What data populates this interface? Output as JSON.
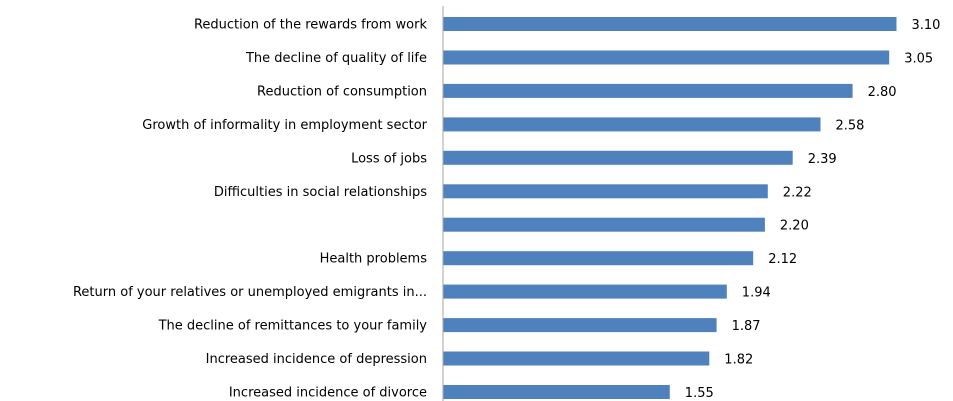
{
  "chart_data": {
    "type": "bar",
    "orientation": "horizontal",
    "categories": [
      "Reduction of the rewards from work",
      "The decline of quality of life",
      "Reduction of consumption",
      "Growth of informality in employment sector",
      "Loss of jobs",
      "Difficulties in social relationships",
      "",
      "Health problems",
      "Return of your relatives or unemployed emigrants in...",
      "The decline of remittances to your family",
      "Increased incidence of depression",
      "Increased incidence of divorce"
    ],
    "values": [
      3.1,
      3.05,
      2.8,
      2.58,
      2.39,
      2.22,
      2.2,
      2.12,
      1.94,
      1.87,
      1.82,
      1.55
    ],
    "value_labels": [
      "3.10",
      "3.05",
      "2.80",
      "2.58",
      "2.39",
      "2.22",
      "2.20",
      "2.12",
      "1.94",
      "1.87",
      "1.82",
      "1.55"
    ],
    "bar_color": "#4f81bd",
    "axis_color": "#a6a6a6",
    "grid": false,
    "legend": "none"
  }
}
